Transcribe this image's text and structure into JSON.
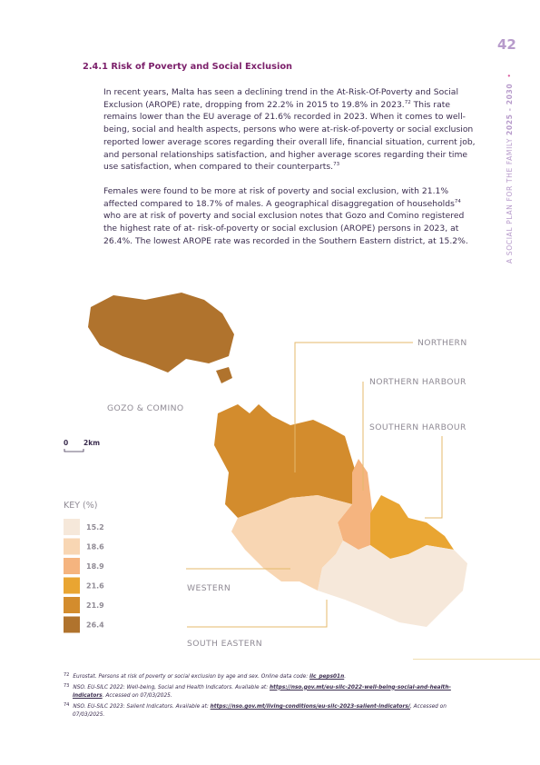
{
  "page_number": "42",
  "sidebar": {
    "text": "A SOCIAL PLAN FOR THE FAMILY",
    "years": "2025 - 2030"
  },
  "heading": {
    "number": "2.4.1",
    "title": "Risk of Poverty and Social Exclusion"
  },
  "body": {
    "paragraphs": [
      [
        {
          "text": "In recent years, Malta has seen a declining trend in the At-Risk-Of-Poverty and Social Exclusion (AROPE) rate, dropping from 22.2% in 2015 to 19.8% in 2023."
        },
        {
          "sup": "72"
        },
        {
          "text": "  This rate remains lower than the EU average of 21.6% recorded in 2023. When it comes to well-being, social and health aspects, persons who were at-risk-of-poverty or social exclusion reported lower average scores regarding their overall life, financial situation, current job, and personal relationships satisfaction, and higher average scores regarding their time use satisfaction, when compared to their counterparts."
        },
        {
          "sup": "73"
        }
      ],
      [
        {
          "text": "Females were found to be more at risk of poverty and social exclusion, with 21.1% affected compared to 18.7% of males. A geographical disaggregation of households"
        },
        {
          "sup": "74"
        },
        {
          "text": " who are at risk of poverty and social exclusion notes that Gozo and Comino registered the highest rate of at- risk-of-poverty or social exclusion (AROPE) persons in 2023, at 26.4%. The lowest AROPE rate was recorded in the Southern Eastern district, at 15.2%."
        }
      ]
    ]
  },
  "map": {
    "regions": [
      {
        "name": "GOZO & COMINO",
        "color": "#b0732d"
      },
      {
        "name": "NORTHERN",
        "color": "#d38c2d"
      },
      {
        "name": "NORTHERN HARBOUR",
        "color": "#f5b47f"
      },
      {
        "name": "SOUTHERN HARBOUR",
        "color": "#e9a532"
      },
      {
        "name": "WESTERN",
        "color": "#f8d6b3"
      },
      {
        "name": "SOUTH EASTERN",
        "color": "#f6e8da"
      }
    ],
    "scale": {
      "start": "0",
      "end": "2km"
    },
    "key": {
      "title": "KEY (%)",
      "items": [
        {
          "value": 15.2,
          "color": "#f6e8da"
        },
        {
          "value": 18.6,
          "color": "#f8d6b3"
        },
        {
          "value": 18.9,
          "color": "#f5b47f"
        },
        {
          "value": 21.6,
          "color": "#e9a532"
        },
        {
          "value": 21.9,
          "color": "#d38c2d"
        },
        {
          "value": 26.4,
          "color": "#b0732d"
        }
      ]
    }
  },
  "footnotes": [
    {
      "num": "72",
      "text": "Eurostat. Persons at risk of poverty or social exclusion by age and sex. Online data code: ",
      "link": "ilc_peps01n",
      "after": "."
    },
    {
      "num": "73",
      "text": "NSO. EU-SILC 2022: Well-being, Social and Health Indicators. Available at: ",
      "link": "https://nso.gov.mt/eu-silc-2022-well-being-social-and-health-indicators",
      "after": ". Accessed on 07/03/2025."
    },
    {
      "num": "74",
      "text": "NSO. EU-SILC 2023: Salient Indicators. Available at: ",
      "link": "https://nso.gov.mt/living-conditions/eu-silc-2023-salient-indicators/",
      "after": ", Accessed on 07/03/2025."
    }
  ]
}
